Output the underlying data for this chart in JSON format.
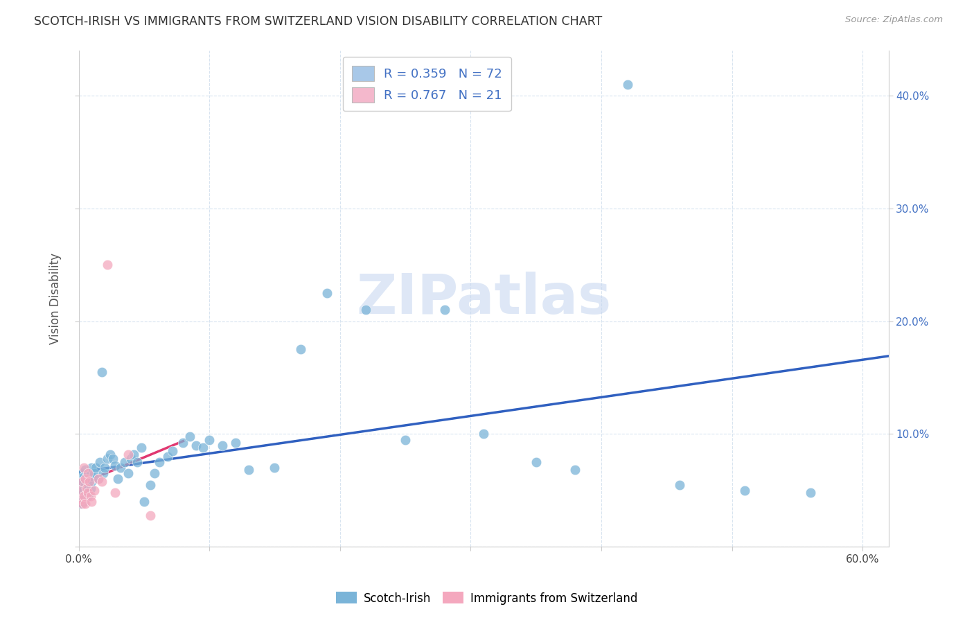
{
  "title": "SCOTCH-IRISH VS IMMIGRANTS FROM SWITZERLAND VISION DISABILITY CORRELATION CHART",
  "source": "Source: ZipAtlas.com",
  "ylabel": "Vision Disability",
  "xlim": [
    0.0,
    0.62
  ],
  "ylim": [
    0.0,
    0.44
  ],
  "scatter1_color": "#7ab4d8",
  "scatter2_color": "#f4a8be",
  "line1_color": "#3060c0",
  "line2_color": "#e03870",
  "dash1_color": "#c8d8f0",
  "dash2_color": "#f0c8d8",
  "legend1_color": "#a8c8e8",
  "legend2_color": "#f4b8cc",
  "watermark_color": "#c8d8f0",
  "grid_color": "#d8e4f0",
  "right_axis_color": "#4472c4",
  "title_color": "#333333",
  "source_color": "#999999",
  "si_x": [
    0.001,
    0.001,
    0.002,
    0.002,
    0.002,
    0.003,
    0.003,
    0.003,
    0.003,
    0.004,
    0.004,
    0.004,
    0.005,
    0.005,
    0.005,
    0.006,
    0.006,
    0.007,
    0.007,
    0.008,
    0.008,
    0.009,
    0.009,
    0.01,
    0.01,
    0.011,
    0.012,
    0.013,
    0.015,
    0.016,
    0.018,
    0.019,
    0.02,
    0.022,
    0.024,
    0.026,
    0.028,
    0.03,
    0.032,
    0.035,
    0.038,
    0.04,
    0.042,
    0.045,
    0.048,
    0.05,
    0.055,
    0.058,
    0.062,
    0.068,
    0.072,
    0.08,
    0.085,
    0.09,
    0.095,
    0.1,
    0.11,
    0.12,
    0.13,
    0.15,
    0.17,
    0.19,
    0.22,
    0.25,
    0.28,
    0.31,
    0.35,
    0.38,
    0.42,
    0.46,
    0.51,
    0.56
  ],
  "si_y": [
    0.04,
    0.055,
    0.038,
    0.048,
    0.06,
    0.042,
    0.05,
    0.058,
    0.065,
    0.04,
    0.052,
    0.062,
    0.044,
    0.055,
    0.068,
    0.05,
    0.062,
    0.045,
    0.055,
    0.048,
    0.06,
    0.052,
    0.065,
    0.058,
    0.07,
    0.062,
    0.065,
    0.07,
    0.06,
    0.075,
    0.155,
    0.065,
    0.07,
    0.078,
    0.082,
    0.078,
    0.072,
    0.06,
    0.07,
    0.075,
    0.065,
    0.078,
    0.082,
    0.075,
    0.088,
    0.04,
    0.055,
    0.065,
    0.075,
    0.08,
    0.085,
    0.092,
    0.098,
    0.09,
    0.088,
    0.095,
    0.09,
    0.092,
    0.068,
    0.07,
    0.175,
    0.225,
    0.21,
    0.095,
    0.21,
    0.1,
    0.075,
    0.068,
    0.41,
    0.055,
    0.05,
    0.048
  ],
  "sw_x": [
    0.001,
    0.002,
    0.003,
    0.003,
    0.004,
    0.004,
    0.005,
    0.005,
    0.006,
    0.007,
    0.007,
    0.008,
    0.009,
    0.01,
    0.012,
    0.015,
    0.018,
    0.022,
    0.028,
    0.038,
    0.055
  ],
  "sw_y": [
    0.05,
    0.042,
    0.058,
    0.038,
    0.045,
    0.07,
    0.06,
    0.038,
    0.052,
    0.048,
    0.065,
    0.058,
    0.045,
    0.04,
    0.05,
    0.06,
    0.058,
    0.25,
    0.048,
    0.082,
    0.028
  ],
  "si_line_x": [
    0.0,
    0.62
  ],
  "sw_line_x": [
    0.0,
    0.08
  ]
}
